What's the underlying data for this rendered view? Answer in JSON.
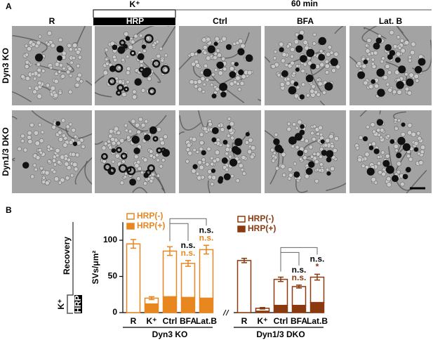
{
  "panel_a": {
    "label": "A",
    "header_stimulus": "K⁺",
    "header_time": "60 min",
    "columns": [
      "R",
      "HRP",
      "Ctrl",
      "BFA",
      "Lat. B"
    ],
    "rows": [
      "Dyn3 KO",
      "Dyn1/3 DKO"
    ]
  },
  "panel_b_label": "B",
  "protocol": {
    "recovery": "Recovery",
    "stimulus": "K⁺",
    "label": "HRP"
  },
  "chart_data": [
    {
      "type": "bar",
      "stacked": true,
      "group_label": "Dyn3 KO",
      "y_label": "SVs/μm²",
      "categories": [
        "R",
        "K⁺",
        "Ctrl",
        "BFA",
        "Lat.B"
      ],
      "ylim": [
        0,
        125
      ],
      "yticks": [
        0,
        50,
        100
      ],
      "series": [
        {
          "name": "HRP(+)",
          "color": "#e8861f",
          "style": "filled",
          "values": [
            0,
            12,
            22,
            21,
            20
          ],
          "errors": [
            null,
            1,
            1.5,
            1.5,
            1
          ]
        },
        {
          "name": "HRP(-)",
          "color": "#e8861f",
          "style": "outline",
          "values": [
            95,
            8,
            63,
            47,
            67
          ],
          "errors": [
            6,
            2,
            6,
            4,
            6
          ]
        }
      ],
      "significance": [
        {
          "category": 3,
          "labels": [
            "n.s.",
            "n.s."
          ]
        },
        {
          "category": 4,
          "labels": [
            "n.s.",
            "n.s."
          ]
        }
      ]
    },
    {
      "type": "bar",
      "stacked": true,
      "group_label": "Dyn1/3 DKO",
      "categories": [
        "R",
        "K⁺",
        "Ctrl",
        "BFA",
        "Lat.B"
      ],
      "ylim": [
        0,
        125
      ],
      "series": [
        {
          "name": "HRP(+)",
          "color": "#8b3a0f",
          "style": "filled",
          "values": [
            0,
            2,
            10,
            10,
            14
          ],
          "errors": [
            null,
            0.5,
            1,
            1,
            1.5
          ]
        },
        {
          "name": "HRP(-)",
          "color": "#8b3a0f",
          "style": "outline",
          "values": [
            72,
            4,
            36,
            26,
            35
          ],
          "errors": [
            3,
            1,
            3,
            2,
            4
          ]
        }
      ],
      "significance": [
        {
          "category": 3,
          "labels": [
            "n.s.",
            "n.s."
          ]
        },
        {
          "category": 4,
          "labels": [
            "n.s.",
            "*"
          ]
        }
      ]
    }
  ]
}
